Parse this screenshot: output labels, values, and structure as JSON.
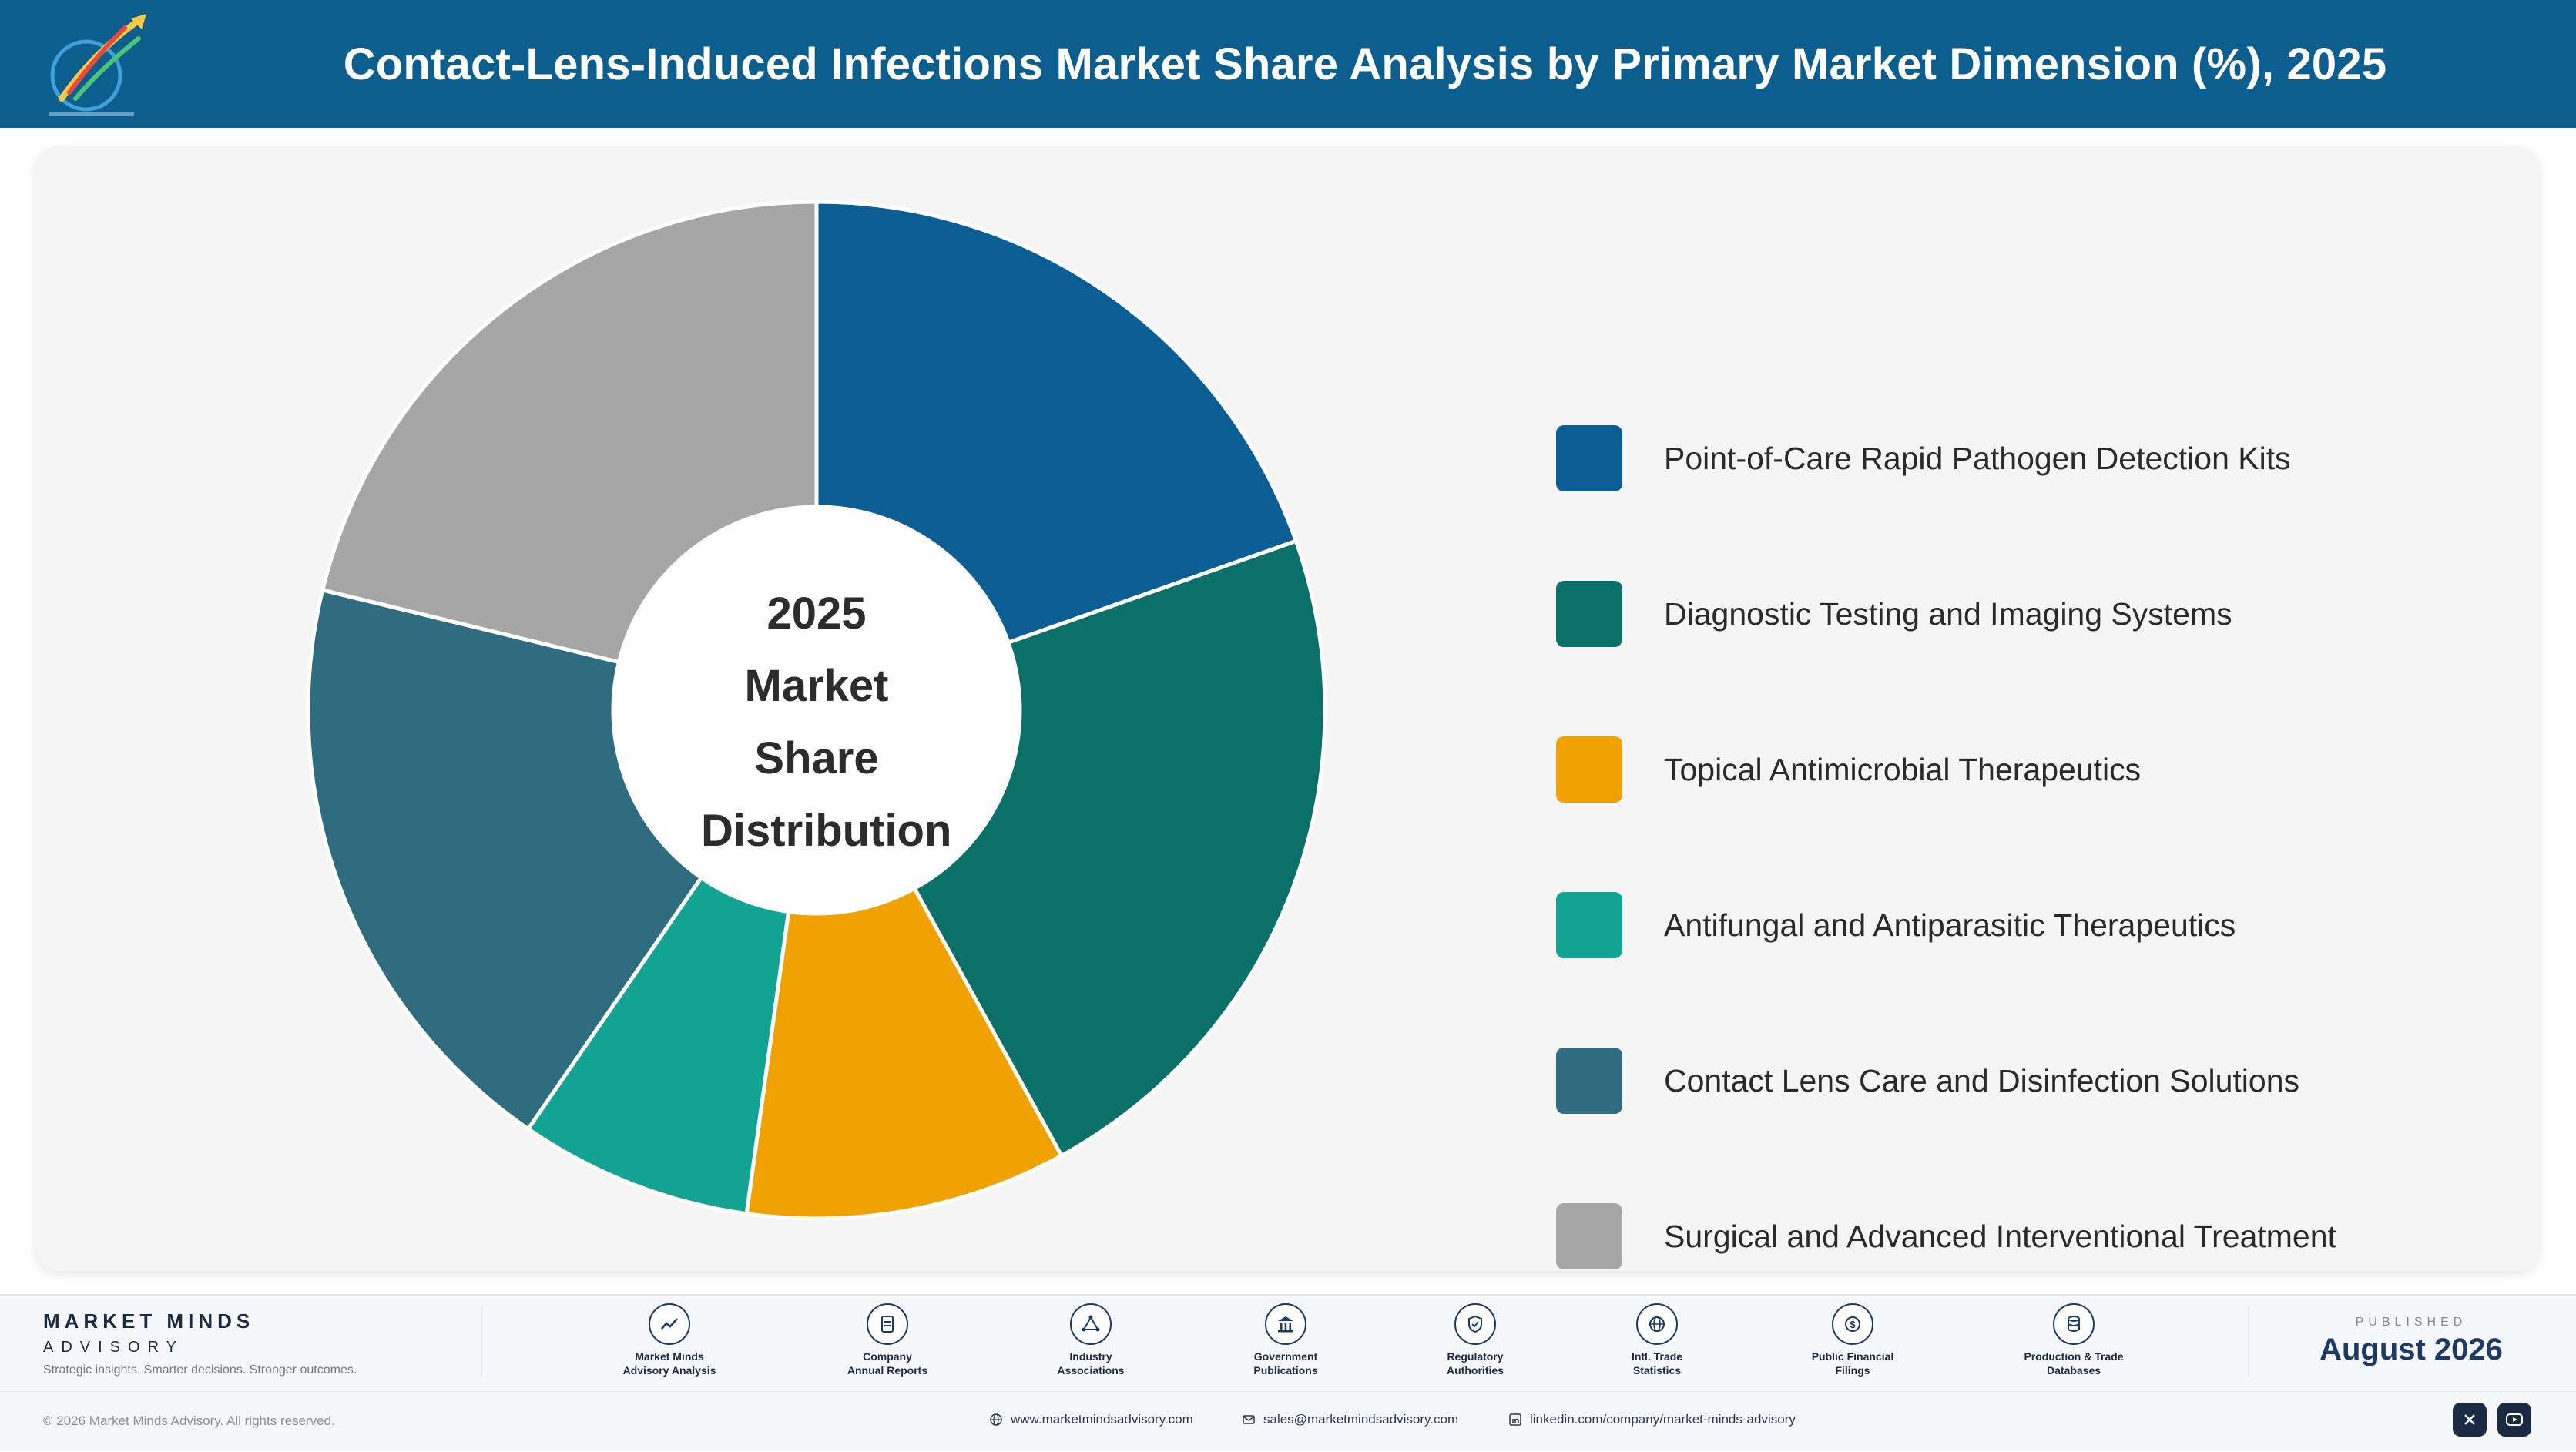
{
  "header": {
    "title": "Contact-Lens-Induced Infections Market Share Analysis by Primary Market Dimension (%), 2025",
    "logo_icon": "market-minds-logo"
  },
  "chart": {
    "center_label": [
      "2025",
      "Market Share",
      "Distribution"
    ]
  },
  "chart_data": {
    "type": "pie",
    "title": "Contact-Lens-Induced Infections Market Share Analysis by Primary Market Dimension (%), 2025",
    "donut": true,
    "legend_position": "right",
    "categories": [
      "Point-of-Care Rapid Pathogen Detection Kits",
      "Diagnostic Testing and Imaging Systems",
      "Topical Antimicrobial Therapeutics",
      "Antifungal and Antiparasitic Therapeutics",
      "Contact Lens Care and Disinfection Solutions",
      "Surgical and Advanced Interventional Treatment"
    ],
    "values": [
      19.6,
      22.4,
      10.2,
      7.4,
      19.2,
      21.2
    ],
    "colors": [
      "#0b5e94",
      "#0b7068",
      "#f0a202",
      "#12a392",
      "#2f6c80",
      "#a6a6a6"
    ]
  },
  "footer": {
    "brand_name": "MARKET MINDS",
    "brand_sub": "ADVISORY",
    "tagline": "Strategic insights. Smarter decisions. Stronger outcomes.",
    "sources": [
      {
        "label": "Market Minds\nAdvisory Analysis",
        "icon": "chart-line-icon"
      },
      {
        "label": "Company\nAnnual Reports",
        "icon": "document-icon"
      },
      {
        "label": "Industry\nAssociations",
        "icon": "network-icon"
      },
      {
        "label": "Government\nPublications",
        "icon": "government-building-icon"
      },
      {
        "label": "Regulatory\nAuthorities",
        "icon": "shield-check-icon"
      },
      {
        "label": "Intl. Trade\nStatistics",
        "icon": "globe-icon"
      },
      {
        "label": "Public Financial\nFilings",
        "icon": "dollar-coin-icon"
      },
      {
        "label": "Production & Trade\nDatabases",
        "icon": "database-icon"
      }
    ],
    "published_label": "PUBLISHED",
    "published_date": "August 2026",
    "copyright": "© 2026 Market Minds Advisory. All rights reserved.",
    "website": "www.marketmindsadvisory.com",
    "email": "sales@marketmindsadvisory.com",
    "linkedin": "linkedin.com/company/market-minds-advisory"
  }
}
